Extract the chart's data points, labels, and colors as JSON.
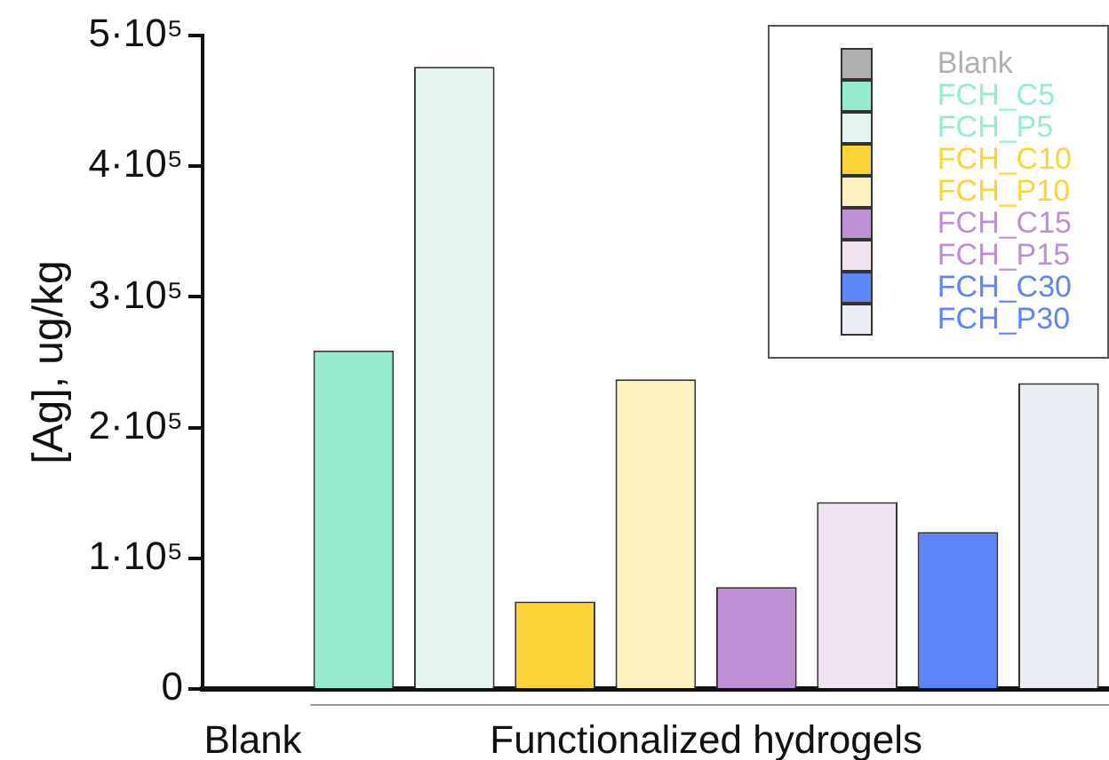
{
  "chart_data": {
    "type": "bar",
    "ylabel": "[Ag], ug/kg",
    "categories": [
      null,
      null,
      null,
      null,
      null,
      null,
      null,
      null,
      null
    ],
    "ylim": [
      0,
      500000
    ],
    "yticks": [
      {
        "value": 0,
        "label": "0"
      },
      {
        "value": 100000,
        "label": "1·10⁵"
      },
      {
        "value": 200000,
        "label": "2·10⁵"
      },
      {
        "value": 300000,
        "label": "3·10⁵"
      },
      {
        "value": 400000,
        "label": "4·10⁵"
      },
      {
        "value": 500000,
        "label": "5·10⁵"
      }
    ],
    "series": [
      {
        "name": "Blank",
        "color": "#b0b0b0",
        "values": [
          0,
          null,
          null,
          null,
          null,
          null,
          null,
          null,
          null
        ]
      },
      {
        "name": "FCH_C5",
        "color": "#96ecd0",
        "values": [
          null,
          259000,
          null,
          null,
          null,
          null,
          null,
          null,
          null
        ]
      },
      {
        "name": "FCH_P5",
        "color": "#e4f5f1",
        "values": [
          null,
          null,
          476000,
          null,
          null,
          null,
          null,
          null,
          null
        ]
      },
      {
        "name": "FCH_C10",
        "color": "#fcd43a",
        "values": [
          null,
          null,
          null,
          67000,
          null,
          null,
          null,
          null,
          null
        ]
      },
      {
        "name": "FCH_P10",
        "color": "#fbf2c0",
        "values": [
          null,
          null,
          null,
          null,
          237000,
          null,
          null,
          null,
          null
        ]
      },
      {
        "name": "FCH_C15",
        "color": "#bf8fd6",
        "values": [
          null,
          null,
          null,
          null,
          null,
          78000,
          null,
          null,
          null
        ]
      },
      {
        "name": "FCH_P15",
        "color": "#efe3f0",
        "values": [
          null,
          null,
          null,
          null,
          null,
          null,
          143000,
          null,
          null
        ]
      },
      {
        "name": "FCH_C30",
        "color": "#5e85f8",
        "values": [
          null,
          null,
          null,
          null,
          null,
          null,
          null,
          120000,
          null
        ]
      },
      {
        "name": "FCH_P30",
        "color": "#eaedf3",
        "values": [
          null,
          null,
          null,
          null,
          null,
          null,
          null,
          null,
          234000
        ]
      }
    ],
    "annotations": [
      "Blank",
      "Functionalized hydrogels"
    ],
    "grid": false,
    "legend": "top right"
  }
}
